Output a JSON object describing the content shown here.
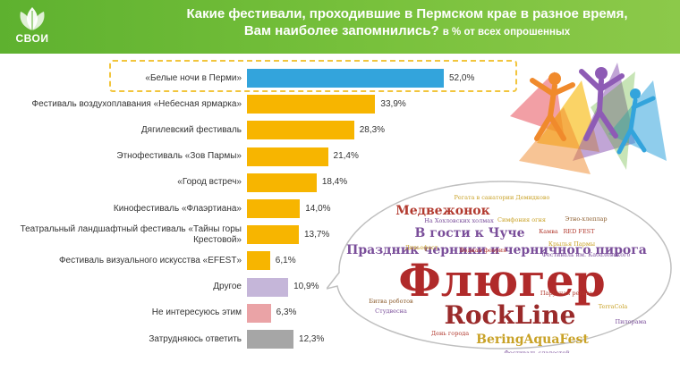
{
  "header": {
    "logo_text": "СВОИ",
    "title_line1": "Какие фестивали, проходившие в Пермском крае в разное время,",
    "title_line2": "Вам наиболее запомнились?",
    "title_unit": "в % от всех опрошенных"
  },
  "chart_data": {
    "type": "bar",
    "orientation": "horizontal",
    "categories": [
      "«Белые ночи в Перми»",
      "Фестиваль воздухоплавания «Небесная ярмарка»",
      "Дягилевский фестиваль",
      "Этнофестиваль «Зов Пармы»",
      "«Город встреч»",
      "Кинофестиваль «Флаэртиана»",
      "Театральный ландшафтный фестиваль «Тайны горы Крестовой»",
      "Фестиваль визуального искусства «EFEST»",
      "Другое",
      "Не интересуюсь этим",
      "Затрудняюсь ответить"
    ],
    "values": [
      52.0,
      33.9,
      28.3,
      21.4,
      18.4,
      14.0,
      13.7,
      6.1,
      10.9,
      6.3,
      12.3
    ],
    "value_labels": [
      "52,0%",
      "33,9%",
      "28,3%",
      "21,4%",
      "18,4%",
      "14,0%",
      "13,7%",
      "6,1%",
      "10,9%",
      "6,3%",
      "12,3%"
    ],
    "colors": [
      "#33a4dc",
      "#f7b500",
      "#f7b500",
      "#f7b500",
      "#f7b500",
      "#f7b500",
      "#f7b500",
      "#f7b500",
      "#c5b6d9",
      "#eaa3a6",
      "#a6a6a6"
    ],
    "xlim": [
      0,
      52
    ],
    "highlighted_category": "«Белые ночи в Перми»"
  },
  "word_cloud": {
    "words": [
      {
        "text": "Регата в санатории Демидково",
        "color": "#c9a227",
        "weight": 1
      },
      {
        "text": "Медвежонок",
        "color": "#b23a2f",
        "weight": 3
      },
      {
        "text": "На Хохловских холмах",
        "color": "#7a4e9a",
        "weight": 1
      },
      {
        "text": "Симфония огня",
        "color": "#c9a227",
        "weight": 1
      },
      {
        "text": "Этно-хлеплар",
        "color": "#8a5a2a",
        "weight": 1
      },
      {
        "text": "В гости к Чуче",
        "color": "#7a4e9a",
        "weight": 3
      },
      {
        "text": "Камва",
        "color": "#b23a2f",
        "weight": 1
      },
      {
        "text": "RED FEST",
        "color": "#b23a2f",
        "weight": 1
      },
      {
        "text": "Праздник черники и черничного пирога",
        "color": "#7a4e9a",
        "weight": 3
      },
      {
        "text": "Крылья Пармы",
        "color": "#c9a227",
        "weight": 1
      },
      {
        "text": "Дивьефест",
        "color": "#c9a227",
        "weight": 1
      },
      {
        "text": "Водная феерия",
        "color": "#b23a2f",
        "weight": 1
      },
      {
        "text": "Фестиваль им. Кабалевского",
        "color": "#7a4e9a",
        "weight": 1
      },
      {
        "text": "Флюгер",
        "color": "#b02a2a",
        "weight": 6
      },
      {
        "text": "Битва роботов",
        "color": "#8a5a2a",
        "weight": 1
      },
      {
        "text": "Парусная регата",
        "color": "#b23a2f",
        "weight": 1
      },
      {
        "text": "Студвесна",
        "color": "#7a4e9a",
        "weight": 1
      },
      {
        "text": "RockLine",
        "color": "#9a2a2a",
        "weight": 5
      },
      {
        "text": "TerraCola",
        "color": "#c9a227",
        "weight": 1
      },
      {
        "text": "День города",
        "color": "#b23a2f",
        "weight": 1
      },
      {
        "text": "Пилорама",
        "color": "#7a4e9a",
        "weight": 1
      },
      {
        "text": "BeringAquaFest",
        "color": "#c9a227",
        "weight": 3
      },
      {
        "text": "Фестиваль сладостей",
        "color": "#7a4e9a",
        "weight": 1
      }
    ]
  }
}
